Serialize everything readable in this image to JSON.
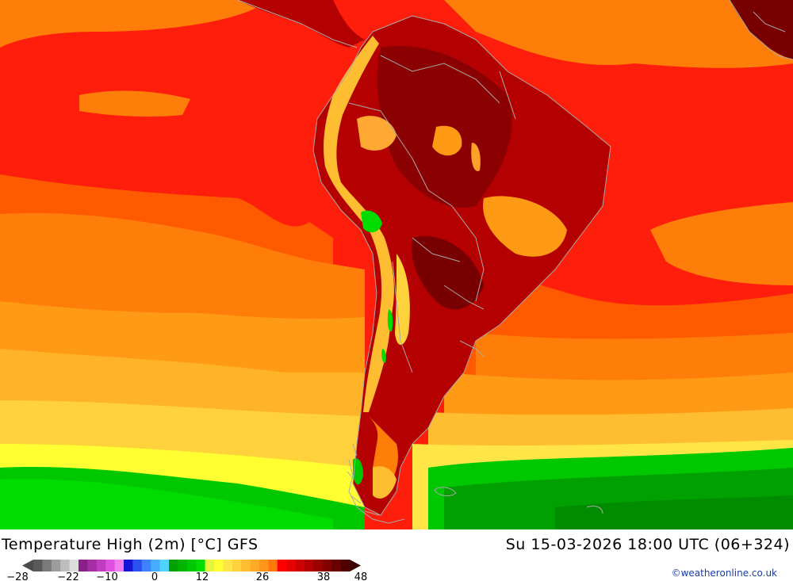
{
  "map": {
    "title": "Temperature High (2m) [°C] GFS",
    "valid_time": "Su 15-03-2026 18:00 UTC (06+324)",
    "credit": "©weatheronline.co.uk"
  },
  "legend": {
    "tick_labels": [
      "-28",
      "-22",
      "-10",
      "0",
      "12",
      "26",
      "38",
      "48"
    ],
    "colors": [
      "#5a5a5a",
      "#7a7a7a",
      "#9c9c9c",
      "#bdbdbd",
      "#dcdcdc",
      "#8a1f8a",
      "#a52ea5",
      "#c23cc2",
      "#e050e0",
      "#f07cf0",
      "#1414d2",
      "#2a50f0",
      "#3c82ff",
      "#46aaff",
      "#50d2ff",
      "#00a000",
      "#00b400",
      "#00c800",
      "#00dc00",
      "#e6f53c",
      "#ffff32",
      "#ffe646",
      "#ffd23c",
      "#ffbe32",
      "#ffaa28",
      "#ff9619",
      "#ff780a",
      "#ff0000",
      "#e60000",
      "#cd0000",
      "#b40000",
      "#9b0000",
      "#820000",
      "#690000",
      "#500000"
    ]
  },
  "colors": {
    "coastline": "#a8a8a8",
    "ocean_warm": "#ff1a0a",
    "ocean_orange": "#ff7a0a",
    "land_hot": "#b40000",
    "polar_green": "#00d200"
  }
}
